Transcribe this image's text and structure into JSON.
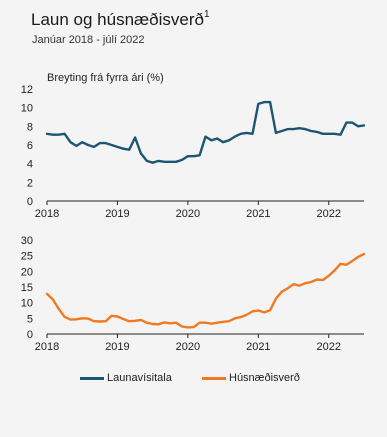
{
  "header": {
    "title": "Laun og húsnæðisverð",
    "title_sup": "1",
    "subtitle": "Janúar 2018 - júlí 2022"
  },
  "colors": {
    "wage": "#1d5673",
    "house": "#ef7a22",
    "axis": "#222222"
  },
  "chart_data": [
    {
      "type": "line",
      "ylabel": "Breyting frá fyrra ári (%)",
      "ylim": [
        0,
        12
      ],
      "yticks": [
        0,
        2,
        4,
        6,
        8,
        10,
        12
      ],
      "xticks": [
        "2018",
        "2019",
        "2020",
        "2021",
        "2022"
      ],
      "x_range": [
        "2018-01",
        "2022-07"
      ],
      "grid": false,
      "series": [
        {
          "name": "Launavísitala",
          "start": "2018-01",
          "values": [
            7.2,
            7.1,
            7.1,
            7.2,
            6.3,
            5.9,
            6.3,
            6.0,
            5.8,
            6.2,
            6.2,
            6.0,
            5.8,
            5.6,
            5.5,
            6.8,
            5.1,
            4.3,
            4.1,
            4.3,
            4.2,
            4.2,
            4.2,
            4.4,
            4.8,
            4.8,
            4.9,
            6.9,
            6.5,
            6.7,
            6.3,
            6.5,
            6.9,
            7.2,
            7.3,
            7.2,
            10.4,
            10.6,
            10.6,
            7.3,
            7.5,
            7.7,
            7.7,
            7.8,
            7.7,
            7.5,
            7.4,
            7.2,
            7.2,
            7.2,
            7.1,
            8.4,
            8.4,
            8.0,
            8.1
          ]
        }
      ]
    },
    {
      "type": "line",
      "ylim": [
        0,
        30
      ],
      "yticks": [
        0,
        5,
        10,
        15,
        20,
        25,
        30
      ],
      "xticks": [
        "2018",
        "2019",
        "2020",
        "2021",
        "2022"
      ],
      "x_range": [
        "2018-01",
        "2022-07"
      ],
      "grid": false,
      "series": [
        {
          "name": "Húsnæðisverð",
          "start": "2018-01",
          "values": [
            12.8,
            11.0,
            8.0,
            5.5,
            4.6,
            4.7,
            5.0,
            4.9,
            4.1,
            4.0,
            4.1,
            5.8,
            5.6,
            4.8,
            4.1,
            4.2,
            4.5,
            3.6,
            3.2,
            3.1,
            3.7,
            3.4,
            3.6,
            2.4,
            2.1,
            2.2,
            3.6,
            3.6,
            3.3,
            3.6,
            3.9,
            4.1,
            5.0,
            5.4,
            6.1,
            7.2,
            7.5,
            6.9,
            7.6,
            11.3,
            13.5,
            14.6,
            15.9,
            15.4,
            16.2,
            16.6,
            17.4,
            17.2,
            18.6,
            20.3,
            22.4,
            22.1,
            23.3,
            24.6,
            25.5
          ]
        }
      ]
    }
  ],
  "legend": {
    "position": "bottom",
    "items": [
      "Launavísitala",
      "Húsnæðisverð"
    ]
  }
}
